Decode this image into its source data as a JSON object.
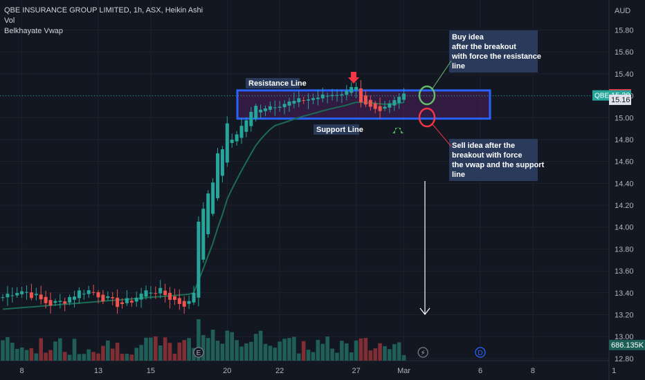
{
  "header": {
    "symbol_line": "QBE INSURANCE GROUP LIMITED, 1h, ASX, Heikin Ashi",
    "indicator_1": "Vol",
    "indicator_2": "Belkhayate Vwap"
  },
  "colors": {
    "background": "#131722",
    "grid": "#1e222d",
    "up": "#26a69a",
    "down": "#ef5350",
    "vwap": "#1b6b55",
    "box_border": "#2962ff",
    "box_fill": "#4a1f5a",
    "annotation_bg": "#2a3a5a",
    "axis_text": "#b2b5be",
    "last_price_up": "#26a69a",
    "last_price_down": "#f23645"
  },
  "chart_data": {
    "type": "candlestick",
    "title": "QBE INSURANCE GROUP LIMITED, 1h, ASX, Heikin Ashi",
    "currency_label": "AUD",
    "y_ticks": [
      "15.80",
      "15.60",
      "15.40",
      "15.20",
      "15.00",
      "14.80",
      "14.60",
      "14.40",
      "14.20",
      "14.00",
      "13.80",
      "13.60",
      "13.40",
      "13.20",
      "13.00",
      "12.80"
    ],
    "ylim": [
      12.78,
      15.98
    ],
    "x_ticks": [
      {
        "label": "8",
        "index": 4
      },
      {
        "label": "13",
        "index": 20
      },
      {
        "label": "15",
        "index": 31
      },
      {
        "label": "20",
        "index": 47
      },
      {
        "label": "22",
        "index": 58
      },
      {
        "label": "27",
        "index": 74
      },
      {
        "label": "Mar",
        "index": 84
      },
      {
        "label": "6",
        "index": 100
      },
      {
        "label": "8",
        "index": 111
      },
      {
        "label": "1",
        "index": 128
      }
    ],
    "bars_visible": 85,
    "price_labels": [
      {
        "label": "15.21",
        "value": 15.21,
        "kind": "up"
      },
      {
        "label": "15.20",
        "value": 15.2,
        "kind": "last"
      },
      {
        "label": "15.16",
        "value": 15.16,
        "kind": "down"
      },
      {
        "label": "686.135K",
        "value": 12.92,
        "kind": "volume"
      }
    ],
    "symbol_tag": "QBE",
    "candles_seed": "approximate",
    "annotations": [
      {
        "name": "resistance-label",
        "text": "Resistance Line"
      },
      {
        "name": "support-label",
        "text": "Support Line"
      },
      {
        "name": "buy-note",
        "lines": [
          "Buy idea",
          "after the breakout",
          "with force the resistance",
          "line"
        ]
      },
      {
        "name": "sell-note",
        "lines": [
          "Sell idea after the",
          "breakout with force",
          "the vwap and the support",
          "line"
        ]
      }
    ],
    "events": [
      {
        "label": "E",
        "index": 41
      },
      {
        "label": "⚡",
        "index": 88
      },
      {
        "label": "D",
        "index": 100
      }
    ]
  }
}
